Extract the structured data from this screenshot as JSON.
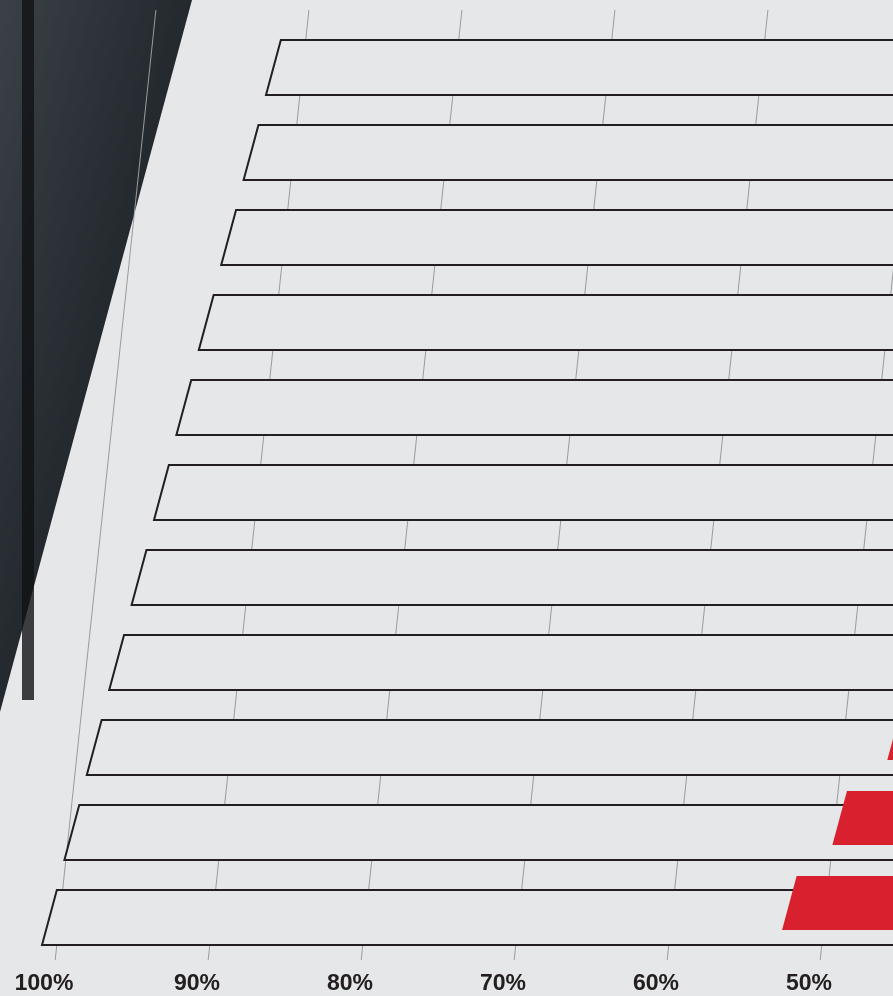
{
  "chart_data": {
    "type": "bar",
    "orientation": "horizontal",
    "values": [
      null,
      null,
      null,
      null,
      null,
      null,
      null,
      null,
      47,
      50,
      52.7
    ],
    "color": "#d9202e",
    "xlim": [
      100,
      40
    ],
    "xticks": [
      {
        "value": 100,
        "label": "100%"
      },
      {
        "value": 90,
        "label": "90%"
      },
      {
        "value": 80,
        "label": "80%"
      },
      {
        "value": 70,
        "label": "70%"
      },
      {
        "value": 60,
        "label": "60%"
      },
      {
        "value": 50,
        "label": "50%"
      }
    ],
    "grid": true
  }
}
